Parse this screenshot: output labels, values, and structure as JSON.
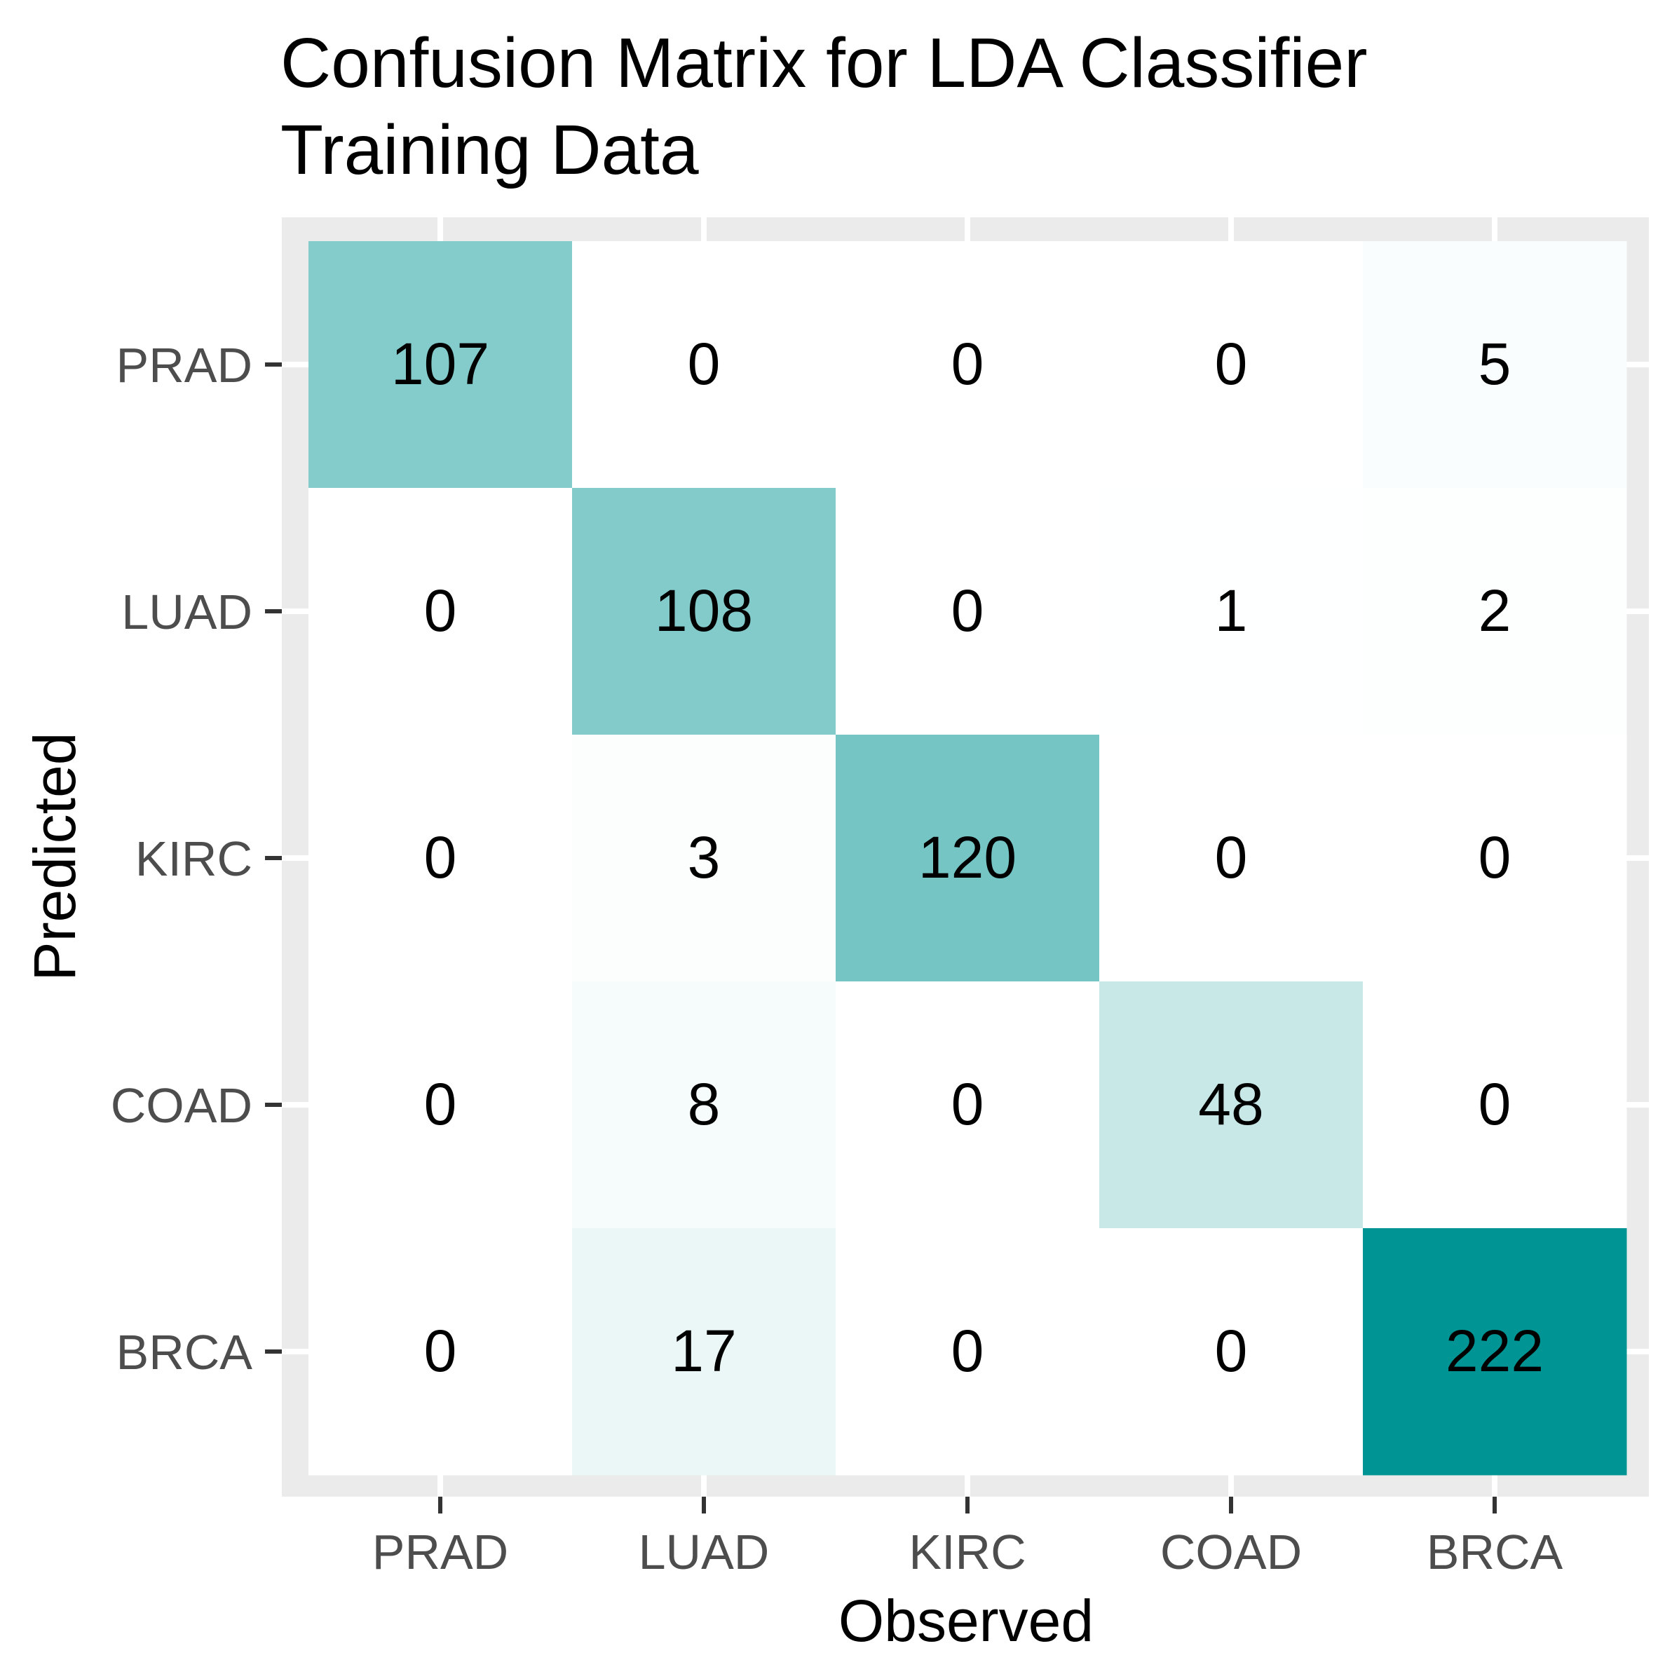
{
  "chart_data": {
    "type": "heatmap",
    "title_lines": [
      "Confusion Matrix for LDA Classifier",
      "Training Data"
    ],
    "xlabel": "Observed",
    "ylabel": "Predicted",
    "x_categories": [
      "PRAD",
      "LUAD",
      "KIRC",
      "COAD",
      "BRCA"
    ],
    "y_categories": [
      "PRAD",
      "LUAD",
      "KIRC",
      "COAD",
      "BRCA"
    ],
    "matrix": [
      [
        107,
        0,
        0,
        0,
        5
      ],
      [
        0,
        108,
        0,
        1,
        2
      ],
      [
        0,
        3,
        120,
        0,
        0
      ],
      [
        0,
        8,
        0,
        48,
        0
      ],
      [
        0,
        17,
        0,
        0,
        222
      ]
    ],
    "color_low": "#ffffff",
    "color_high": "#009494",
    "panel_background": "#ebebeb",
    "grid": true,
    "legend": "none"
  }
}
